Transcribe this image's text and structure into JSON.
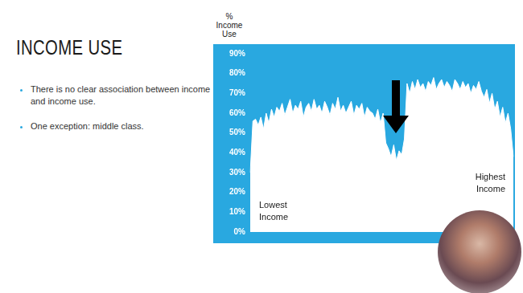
{
  "slide": {
    "title": "INCOME USE",
    "bullets": [
      "There is no clear association between income and income use.",
      "One exception: middle class."
    ]
  },
  "chart_data": {
    "type": "area",
    "y_label": "% Income Use",
    "categories": [
      null,
      null,
      null,
      null,
      null,
      null,
      null,
      null,
      null,
      null,
      null,
      null,
      null,
      null,
      null,
      null,
      null,
      null,
      null,
      null,
      null,
      null,
      null,
      null,
      null,
      null,
      null,
      null,
      null,
      null,
      null,
      null,
      null,
      null,
      null,
      null,
      null,
      null,
      null,
      null,
      null,
      null,
      null,
      null,
      null,
      null,
      null,
      null,
      null,
      null,
      null,
      null,
      null,
      null,
      null,
      null,
      null,
      null,
      null,
      null,
      null,
      null,
      null,
      null,
      null,
      null,
      null,
      null,
      null,
      null,
      null,
      null,
      null,
      null,
      null,
      null,
      null,
      null,
      null,
      null,
      null,
      null,
      null,
      null,
      null,
      null,
      null,
      null,
      null,
      null,
      null,
      null,
      null,
      null,
      null,
      null,
      null,
      null,
      null,
      null
    ],
    "values": [
      30,
      56,
      57,
      54,
      58,
      52,
      60,
      55,
      62,
      58,
      63,
      61,
      65,
      59,
      63,
      67,
      60,
      64,
      62,
      66,
      58,
      63,
      65,
      61,
      67,
      62,
      64,
      60,
      66,
      63,
      59,
      65,
      62,
      68,
      61,
      64,
      60,
      63,
      66,
      59,
      64,
      62,
      65,
      58,
      63,
      61,
      60,
      57,
      62,
      55,
      60,
      45,
      42,
      38,
      44,
      36,
      41,
      39,
      47,
      75,
      70,
      76,
      72,
      77,
      73,
      75,
      71,
      76,
      74,
      78,
      72,
      75,
      77,
      73,
      76,
      74,
      71,
      77,
      75,
      72,
      76,
      73,
      75,
      70,
      74,
      72,
      76,
      71,
      68,
      72,
      65,
      70,
      62,
      66,
      58,
      63,
      55,
      60,
      52,
      38
    ],
    "color": "#ffffff",
    "ylim": [
      0,
      90
    ],
    "yticks": [
      {
        "value": 0,
        "label": "0%"
      },
      {
        "value": 10,
        "label": "10%"
      },
      {
        "value": 20,
        "label": "20%"
      },
      {
        "value": 30,
        "label": "30%"
      },
      {
        "value": 40,
        "label": "40%"
      },
      {
        "value": 50,
        "label": "50%"
      },
      {
        "value": 60,
        "label": "60%"
      },
      {
        "value": 70,
        "label": "70%"
      },
      {
        "value": 80,
        "label": "80%"
      },
      {
        "value": 90,
        "label": "90%"
      }
    ],
    "grid": false,
    "tick_labels": "y",
    "annotations": [
      "Lowest Income",
      "Highest Income"
    ]
  }
}
